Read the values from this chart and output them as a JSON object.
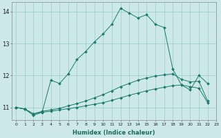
{
  "xlabel": "Humidex (Indice chaleur)",
  "bg_color": "#cce8e8",
  "grid_color": "#99cccc",
  "line_color": "#1a7a6e",
  "xlim": [
    -0.5,
    23
  ],
  "ylim": [
    10.6,
    14.3
  ],
  "yticks": [
    11,
    12,
    13,
    14
  ],
  "xtick_labels": [
    "0",
    "1",
    "2",
    "3",
    "4",
    "5",
    "6",
    "7",
    "8",
    "9",
    "1011121314151617181920212223"
  ],
  "xtick_positions": [
    0,
    1,
    2,
    3,
    4,
    5,
    6,
    7,
    8,
    9,
    10
  ],
  "series": [
    {
      "x": [
        0,
        1,
        2,
        3,
        4,
        5,
        6,
        7,
        8,
        9,
        10,
        11,
        12,
        13,
        14,
        15,
        16,
        17,
        18,
        19,
        20,
        21,
        22
      ],
      "y": [
        11.0,
        10.95,
        10.75,
        10.85,
        11.85,
        11.75,
        12.05,
        12.5,
        12.75,
        13.05,
        13.3,
        13.6,
        14.1,
        13.95,
        13.8,
        13.9,
        13.6,
        13.5,
        12.2,
        11.7,
        11.55,
        12.0,
        11.75
      ]
    },
    {
      "x": [
        0,
        1,
        2,
        3,
        4,
        5,
        6,
        7,
        8,
        9,
        10,
        11,
        12,
        13,
        14,
        15,
        16,
        17,
        18,
        19,
        20,
        21,
        22
      ],
      "y": [
        11.0,
        10.95,
        10.8,
        10.88,
        10.92,
        10.97,
        11.05,
        11.12,
        11.2,
        11.3,
        11.4,
        11.52,
        11.65,
        11.75,
        11.85,
        11.92,
        11.98,
        12.02,
        12.05,
        11.88,
        11.8,
        11.82,
        11.2
      ]
    },
    {
      "x": [
        0,
        1,
        2,
        3,
        4,
        5,
        6,
        7,
        8,
        9,
        10,
        11,
        12,
        13,
        14,
        15,
        16,
        17,
        18,
        19,
        20,
        21,
        22
      ],
      "y": [
        11.0,
        10.95,
        10.8,
        10.85,
        10.88,
        10.92,
        10.96,
        11.0,
        11.05,
        11.1,
        11.15,
        11.22,
        11.3,
        11.38,
        11.45,
        11.52,
        11.58,
        11.63,
        11.68,
        11.7,
        11.65,
        11.6,
        11.15
      ]
    }
  ]
}
